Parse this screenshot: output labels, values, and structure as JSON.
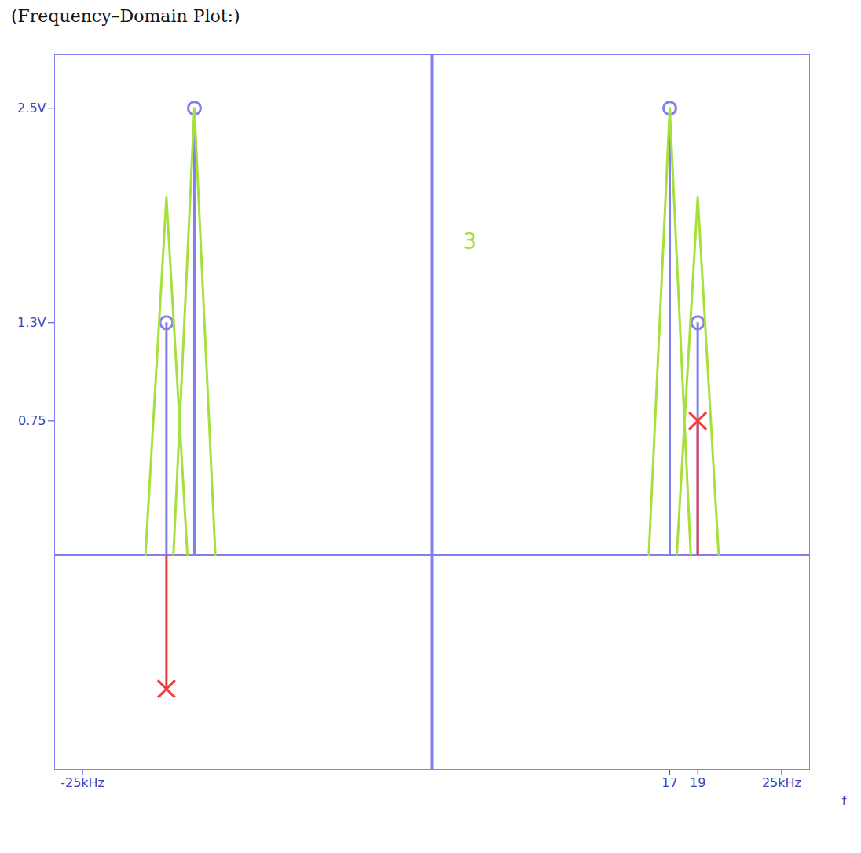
{
  "chart_data": {
    "type": "stem",
    "title": "(Frequency–Domain Plot:)",
    "x_label": "f",
    "xlim": [
      -27,
      27
    ],
    "xticks": [
      {
        "value": -25,
        "label": "-25kHz"
      },
      17,
      19,
      {
        "value": 25,
        "label": "25kHz"
      }
    ],
    "ylim": [
      -1.2,
      2.8
    ],
    "yticks": [
      0.75,
      {
        "value": 1.3,
        "label": "1.3V"
      },
      {
        "value": 2.5,
        "label": "2.5V"
      }
    ],
    "grid": false,
    "series": [
      {
        "type": "stem",
        "color": "#7f7ff0",
        "marker": "circle",
        "x": [
          -19,
          -17,
          17,
          19
        ],
        "values": [
          1.3,
          2.5,
          2.5,
          1.3
        ]
      },
      {
        "type": "stem",
        "color": "#f03c3c",
        "marker": "x",
        "x": [
          -19,
          19
        ],
        "values": [
          -0.75,
          0.75
        ]
      },
      {
        "type": "line",
        "color": "#a6e03c",
        "line_style": "solid",
        "x": [
          -20.5,
          -19,
          -17.5,
          null,
          -18.5,
          -17,
          -15.5,
          null,
          15.5,
          17,
          18.5,
          null,
          17.5,
          19,
          20.5
        ],
        "values": [
          0,
          2.0,
          0,
          null,
          0,
          2.5,
          0,
          null,
          0,
          2.5,
          0,
          null,
          0,
          2.0,
          0
        ]
      }
    ],
    "annotations": [
      {
        "text": "3",
        "x": 2.2,
        "y": 1.75,
        "color": "#a6e03c"
      }
    ]
  }
}
